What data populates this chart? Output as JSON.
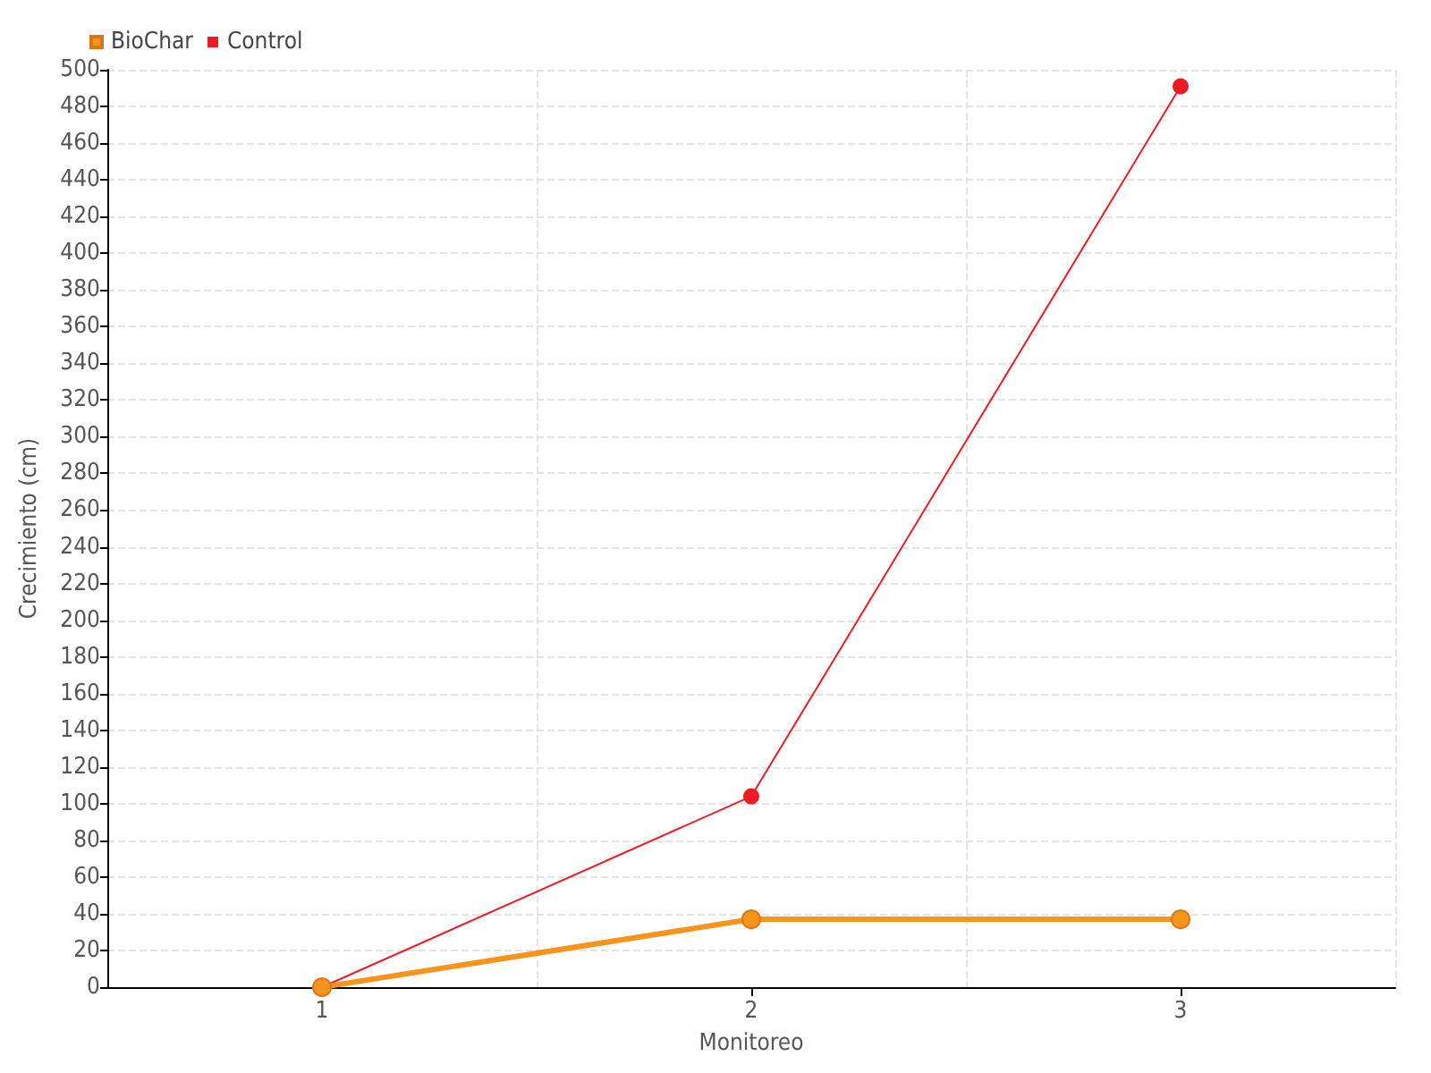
{
  "chart_data": {
    "type": "line",
    "xlabel": "Monitoreo",
    "ylabel": "Crecimiento (cm)",
    "categories": [
      "1",
      "2",
      "3"
    ],
    "series": [
      {
        "name": "BioChar",
        "color": "#f7941d",
        "values": [
          0,
          37,
          37
        ]
      },
      {
        "name": "Control",
        "color": "#ed1c24",
        "values": [
          0,
          104,
          491
        ]
      }
    ],
    "ylim": [
      0,
      500
    ],
    "yticks": [
      0,
      20,
      40,
      60,
      80,
      100,
      120,
      140,
      160,
      180,
      200,
      220,
      240,
      260,
      280,
      300,
      320,
      340,
      360,
      380,
      400,
      420,
      440,
      460,
      480,
      500
    ],
    "grid": true,
    "legend": "top left",
    "marker": "circle",
    "line_style": "solid"
  }
}
